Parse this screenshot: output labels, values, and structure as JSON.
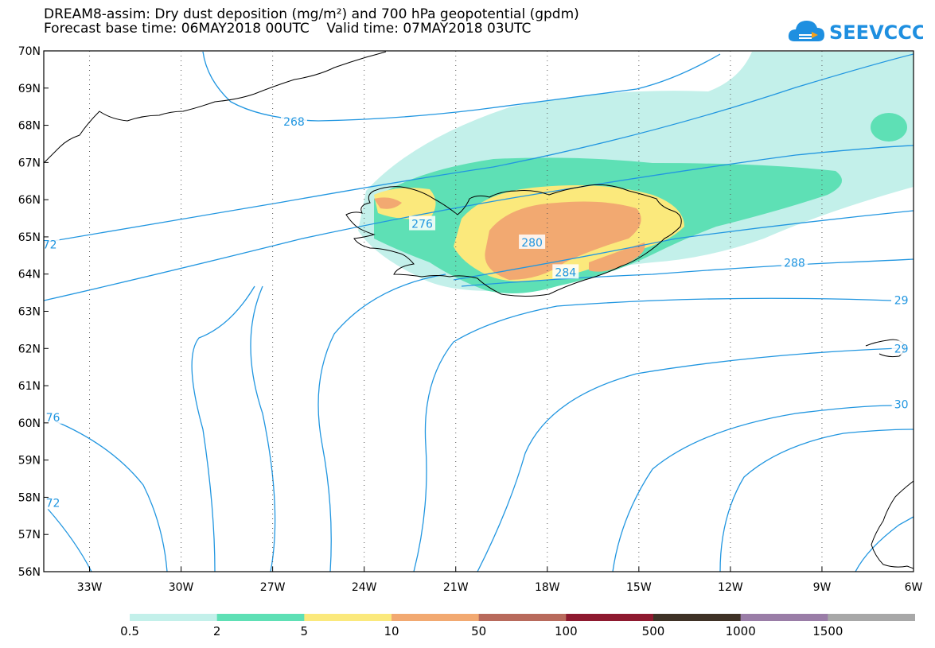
{
  "title": {
    "line1": "DREAM8-assim: Dry dust deposition (mg/m²) and 700 hPa geopotential (gpdm)",
    "line2": "Forecast base time: 06MAY2018 00UTC    Valid time: 07MAY2018 03UTC"
  },
  "logo": {
    "text": "SEEVCCC",
    "icon": "cloud-logo-icon",
    "color": "#1e8fe0"
  },
  "axes": {
    "lat_labels": [
      "70N",
      "69N",
      "68N",
      "67N",
      "66N",
      "65N",
      "64N",
      "63N",
      "62N",
      "61N",
      "60N",
      "59N",
      "58N",
      "57N",
      "56N"
    ],
    "lon_labels": [
      "33W",
      "30W",
      "27W",
      "24W",
      "21W",
      "18W",
      "15W",
      "12W",
      "9W",
      "6W"
    ],
    "lat_range": [
      56,
      70
    ],
    "lon_range": [
      -34.5,
      -6
    ]
  },
  "contour_labels": [
    {
      "text": "268",
      "lon": -26.3,
      "lat": 68.1
    },
    {
      "text": "276",
      "lon": -22.1,
      "lat": 65.35
    },
    {
      "text": "280",
      "lon": -18.5,
      "lat": 64.85
    },
    {
      "text": "284",
      "lon": -17.4,
      "lat": 64.05
    },
    {
      "text": "288",
      "lon": -9.9,
      "lat": 64.3
    },
    {
      "text": "72",
      "lon": -34.3,
      "lat": 64.8
    },
    {
      "text": "76",
      "lon": -34.2,
      "lat": 60.15
    },
    {
      "text": "72",
      "lon": -34.2,
      "lat": 57.85
    },
    {
      "text": "29",
      "lon": -6.4,
      "lat": 63.3
    },
    {
      "text": "29",
      "lon": -6.4,
      "lat": 62.0
    },
    {
      "text": "30",
      "lon": -6.4,
      "lat": 60.5
    }
  ],
  "legend": {
    "labels": [
      "0.5",
      "2",
      "5",
      "10",
      "50",
      "100",
      "500",
      "1000",
      "1500"
    ],
    "colors": [
      "#c3f0ea",
      "#5ee0b5",
      "#fbe97c",
      "#f2a971",
      "#b86a5c",
      "#8e1a2f",
      "#3f3226",
      "#9a7da7",
      "#a8a8a8"
    ]
  },
  "colors": {
    "contour": "#2196e0",
    "coast": "#000000",
    "dust_0_5": "#c3f0ea",
    "dust_2": "#5ee0b5",
    "dust_5": "#fbe97c",
    "dust_10": "#f2a971"
  }
}
